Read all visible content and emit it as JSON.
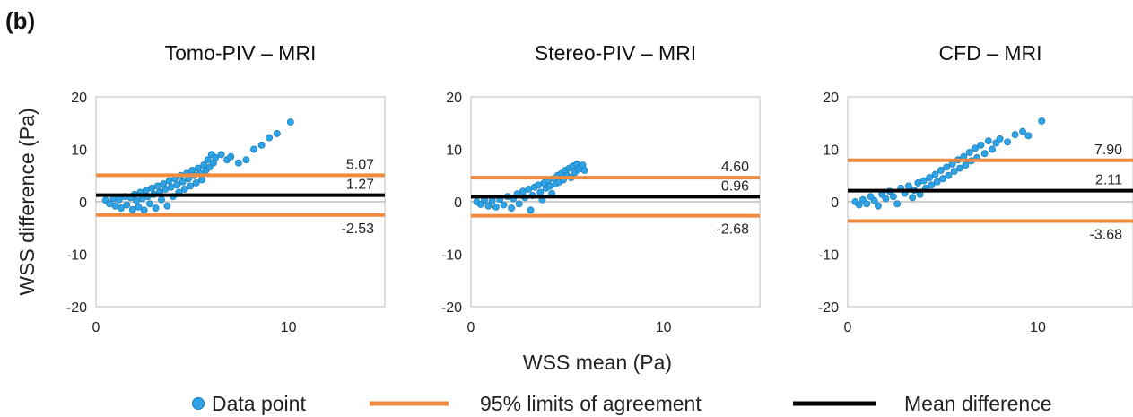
{
  "figure": {
    "panel_label": "(b)",
    "ylabel": "WSS difference (Pa)",
    "xlabel": "WSS mean (Pa)",
    "legend": [
      {
        "label": "Data point",
        "kind": "marker",
        "color": "#2ea3e6"
      },
      {
        "label": "95% limits of agreement",
        "kind": "line",
        "color": "#f08a3c"
      },
      {
        "label": "Mean difference",
        "kind": "line",
        "color": "#000000"
      }
    ]
  },
  "chart_data": [
    {
      "type": "scatter",
      "title": "Tomo-PIV – MRI",
      "xlim": [
        0,
        15
      ],
      "ylim": [
        -20,
        20
      ],
      "xticks": [
        "0",
        "10"
      ],
      "yticks": [
        "20",
        "10",
        "0",
        "-10",
        "-20"
      ],
      "mean_difference": 1.27,
      "limits_of_agreement": [
        5.07,
        -2.53
      ],
      "labels": {
        "upper": "5.07",
        "mean": "1.27",
        "lower": "-2.53"
      },
      "points": [
        [
          0.5,
          0.3
        ],
        [
          0.7,
          -0.4
        ],
        [
          0.9,
          0.6
        ],
        [
          1.0,
          -0.8
        ],
        [
          1.2,
          0.4
        ],
        [
          1.3,
          -1.2
        ],
        [
          1.5,
          1.0
        ],
        [
          1.6,
          -0.6
        ],
        [
          1.8,
          0.8
        ],
        [
          1.9,
          -1.5
        ],
        [
          2.0,
          1.4
        ],
        [
          2.1,
          0.2
        ],
        [
          2.2,
          -1.0
        ],
        [
          2.3,
          1.8
        ],
        [
          2.4,
          0.6
        ],
        [
          2.5,
          -1.6
        ],
        [
          2.6,
          2.2
        ],
        [
          2.7,
          1.0
        ],
        [
          2.8,
          -0.4
        ],
        [
          2.9,
          2.6
        ],
        [
          3.0,
          1.4
        ],
        [
          3.1,
          -1.2
        ],
        [
          3.2,
          3.0
        ],
        [
          3.3,
          1.8
        ],
        [
          3.4,
          0.4
        ],
        [
          3.5,
          3.4
        ],
        [
          3.6,
          2.4
        ],
        [
          3.7,
          -0.8
        ],
        [
          3.8,
          4.0
        ],
        [
          3.9,
          2.8
        ],
        [
          4.0,
          1.0
        ],
        [
          4.1,
          4.4
        ],
        [
          4.2,
          3.2
        ],
        [
          4.3,
          1.8
        ],
        [
          4.4,
          5.0
        ],
        [
          4.5,
          3.8
        ],
        [
          4.6,
          2.4
        ],
        [
          4.7,
          5.4
        ],
        [
          4.8,
          4.4
        ],
        [
          4.9,
          3.0
        ],
        [
          5.0,
          6.0
        ],
        [
          5.1,
          5.0
        ],
        [
          5.2,
          3.6
        ],
        [
          5.3,
          6.4
        ],
        [
          5.4,
          5.4
        ],
        [
          5.5,
          4.2
        ],
        [
          5.6,
          7.0
        ],
        [
          5.7,
          6.0
        ],
        [
          5.8,
          8.0
        ],
        [
          5.9,
          6.6
        ],
        [
          6.0,
          9.0
        ],
        [
          6.1,
          7.4
        ],
        [
          6.2,
          8.4
        ],
        [
          6.5,
          9.0
        ],
        [
          6.8,
          8.0
        ],
        [
          7.0,
          8.6
        ],
        [
          7.4,
          7.4
        ],
        [
          7.8,
          8.0
        ],
        [
          8.2,
          10.0
        ],
        [
          8.6,
          10.8
        ],
        [
          9.0,
          12.2
        ],
        [
          9.4,
          13.0
        ],
        [
          10.1,
          15.2
        ]
      ]
    },
    {
      "type": "scatter",
      "title": "Stereo-PIV – MRI",
      "xlim": [
        0,
        15
      ],
      "ylim": [
        -20,
        20
      ],
      "xticks": [
        "0",
        "10"
      ],
      "yticks": [
        "20",
        "10",
        "0",
        "-10",
        "-20"
      ],
      "mean_difference": 0.96,
      "limits_of_agreement": [
        4.6,
        -2.68
      ],
      "labels": {
        "upper": "4.60",
        "mean": "0.96",
        "lower": "-2.68"
      },
      "points": [
        [
          0.3,
          0.0
        ],
        [
          0.5,
          -0.5
        ],
        [
          0.7,
          0.3
        ],
        [
          0.9,
          -0.8
        ],
        [
          1.1,
          0.2
        ],
        [
          1.3,
          -1.0
        ],
        [
          1.5,
          0.5
        ],
        [
          1.7,
          -0.6
        ],
        [
          1.9,
          1.0
        ],
        [
          2.1,
          -1.2
        ],
        [
          2.2,
          0.6
        ],
        [
          2.4,
          1.5
        ],
        [
          2.5,
          -0.4
        ],
        [
          2.7,
          2.0
        ],
        [
          2.8,
          0.8
        ],
        [
          3.0,
          2.4
        ],
        [
          3.1,
          -1.6
        ],
        [
          3.2,
          1.2
        ],
        [
          3.3,
          2.8
        ],
        [
          3.5,
          3.2
        ],
        [
          3.6,
          1.8
        ],
        [
          3.7,
          0.4
        ],
        [
          3.8,
          3.6
        ],
        [
          3.9,
          2.6
        ],
        [
          4.0,
          4.0
        ],
        [
          4.1,
          3.0
        ],
        [
          4.2,
          1.6
        ],
        [
          4.3,
          4.4
        ],
        [
          4.4,
          3.4
        ],
        [
          4.5,
          5.0
        ],
        [
          4.6,
          3.8
        ],
        [
          4.7,
          5.4
        ],
        [
          4.8,
          4.2
        ],
        [
          4.9,
          6.0
        ],
        [
          5.0,
          5.0
        ],
        [
          5.1,
          6.4
        ],
        [
          5.2,
          4.6
        ],
        [
          5.3,
          6.8
        ],
        [
          5.4,
          5.6
        ],
        [
          5.5,
          7.2
        ],
        [
          5.6,
          6.2
        ],
        [
          5.7,
          6.6
        ],
        [
          5.8,
          7.0
        ],
        [
          5.9,
          6.0
        ]
      ]
    },
    {
      "type": "scatter",
      "title": "CFD – MRI",
      "xlim": [
        0,
        15
      ],
      "ylim": [
        -20,
        20
      ],
      "xticks": [
        "0",
        "10"
      ],
      "yticks": [
        "20",
        "10",
        "0",
        "-10",
        "-20"
      ],
      "mean_difference": 2.11,
      "limits_of_agreement": [
        7.9,
        -3.68
      ],
      "labels": {
        "upper": "7.90",
        "mean": "2.11",
        "lower": "-3.68"
      },
      "points": [
        [
          0.4,
          0.0
        ],
        [
          0.6,
          -0.6
        ],
        [
          0.8,
          0.4
        ],
        [
          1.0,
          -0.4
        ],
        [
          1.2,
          1.0
        ],
        [
          1.4,
          0.2
        ],
        [
          1.6,
          -0.8
        ],
        [
          1.8,
          1.4
        ],
        [
          2.0,
          0.6
        ],
        [
          2.2,
          2.0
        ],
        [
          2.4,
          1.0
        ],
        [
          2.6,
          -0.4
        ],
        [
          2.8,
          2.6
        ],
        [
          3.0,
          1.6
        ],
        [
          3.2,
          3.0
        ],
        [
          3.4,
          0.8
        ],
        [
          3.5,
          2.2
        ],
        [
          3.7,
          3.6
        ],
        [
          3.8,
          1.4
        ],
        [
          4.0,
          4.0
        ],
        [
          4.1,
          2.6
        ],
        [
          4.3,
          4.6
        ],
        [
          4.4,
          3.2
        ],
        [
          4.6,
          5.2
        ],
        [
          4.7,
          3.8
        ],
        [
          4.9,
          6.0
        ],
        [
          5.0,
          4.4
        ],
        [
          5.2,
          6.6
        ],
        [
          5.3,
          5.0
        ],
        [
          5.5,
          7.2
        ],
        [
          5.6,
          5.8
        ],
        [
          5.8,
          8.0
        ],
        [
          5.9,
          6.4
        ],
        [
          6.1,
          8.6
        ],
        [
          6.2,
          7.0
        ],
        [
          6.4,
          9.4
        ],
        [
          6.5,
          7.8
        ],
        [
          6.7,
          10.2
        ],
        [
          6.8,
          8.4
        ],
        [
          7.0,
          10.8
        ],
        [
          7.2,
          9.2
        ],
        [
          7.4,
          11.6
        ],
        [
          7.6,
          10.0
        ],
        [
          7.8,
          11.2
        ],
        [
          8.0,
          12.0
        ],
        [
          8.4,
          11.4
        ],
        [
          8.8,
          12.8
        ],
        [
          9.2,
          13.4
        ],
        [
          9.5,
          12.6
        ],
        [
          10.2,
          15.4
        ]
      ]
    }
  ]
}
